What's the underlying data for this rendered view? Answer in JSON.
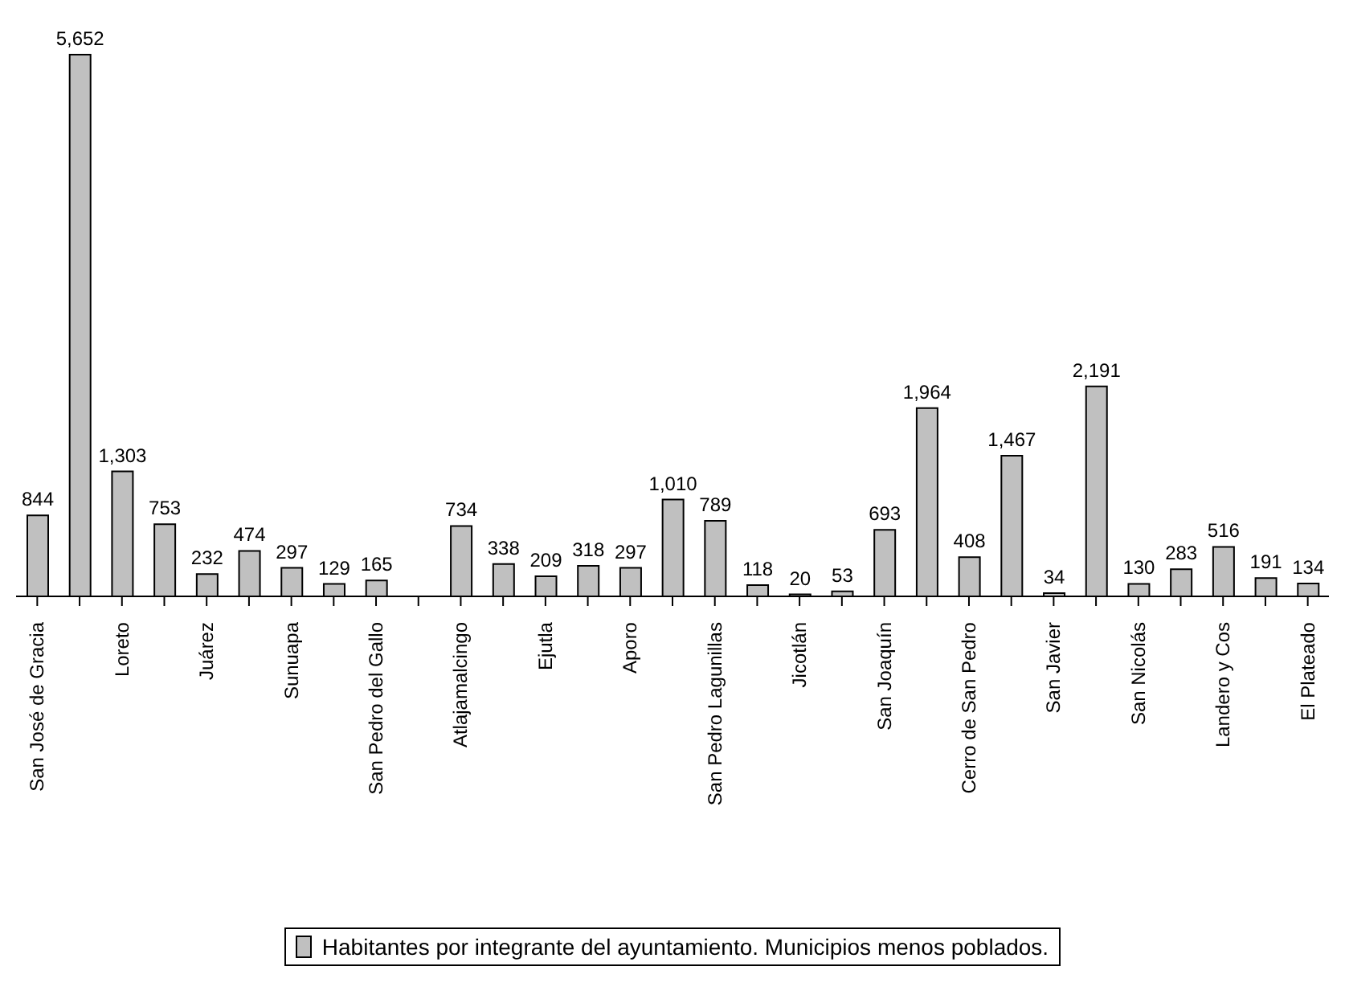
{
  "chart_data": {
    "type": "bar",
    "categories": [
      "San José de Gracia",
      null,
      "Loreto",
      null,
      "Juárez",
      null,
      "Sunuapa",
      null,
      "San Pedro del Gallo",
      null,
      "Atlajamalcingo",
      null,
      "Ejutla",
      null,
      "Aporo",
      null,
      "San Pedro Lagunillas",
      null,
      "Jicotlán",
      null,
      "San Joaquín",
      null,
      "Cerro de San Pedro",
      null,
      "San Javier",
      null,
      "San Nicolás",
      null,
      "Landero y Cos",
      null,
      "El Plateado"
    ],
    "series": [
      {
        "name": "Habitantes por integrante del ayuntamiento. Municipios menos poblados.",
        "color": "#c0c0c0",
        "values": [
          844,
          5652,
          1303,
          753,
          232,
          474,
          297,
          129,
          165,
          null,
          734,
          338,
          209,
          318,
          297,
          1010,
          789,
          118,
          20,
          53,
          693,
          1964,
          408,
          1467,
          34,
          2191,
          130,
          283,
          516,
          191,
          134
        ],
        "value_labels": [
          "844",
          "5,652",
          "1,303",
          "753",
          "232",
          "474",
          "297",
          "129",
          "165",
          null,
          "734",
          "338",
          "209",
          "318",
          "297",
          "1,010",
          "789",
          "118",
          "20",
          "53",
          "693",
          "1,964",
          "408",
          "1,467",
          "34",
          "2,191",
          "130",
          "283",
          "516",
          "191",
          "134"
        ]
      }
    ],
    "legend": "bottom",
    "grid": false
  }
}
